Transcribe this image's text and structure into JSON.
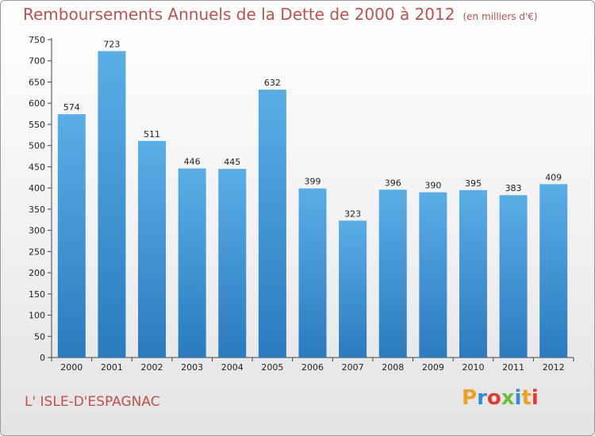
{
  "header": {
    "title": "Remboursements Annuels de la Dette de 2000 à 2012",
    "unit": "(en milliers d'€)"
  },
  "footer": {
    "commune": "L' ISLE-D'ESPAGNAC",
    "brand": "Proxiti",
    "brand_letters": [
      "P",
      "r",
      "o",
      "x",
      "i",
      "t",
      "i"
    ]
  },
  "chart_data": {
    "type": "bar",
    "title": "Remboursements Annuels de la Dette de 2000 à 2012",
    "categories": [
      "2000",
      "2001",
      "2002",
      "2003",
      "2004",
      "2005",
      "2006",
      "2007",
      "2008",
      "2009",
      "2010",
      "2011",
      "2012"
    ],
    "values": [
      574,
      723,
      511,
      446,
      445,
      632,
      399,
      323,
      396,
      390,
      395,
      383,
      409
    ],
    "ylim": [
      0,
      750
    ],
    "yticks": [
      0,
      50,
      100,
      150,
      200,
      250,
      300,
      350,
      400,
      450,
      500,
      550,
      600,
      650,
      700,
      750
    ],
    "grid": false,
    "bar_color_top": "#5aaee6",
    "bar_color_bottom": "#2a7bbf"
  }
}
